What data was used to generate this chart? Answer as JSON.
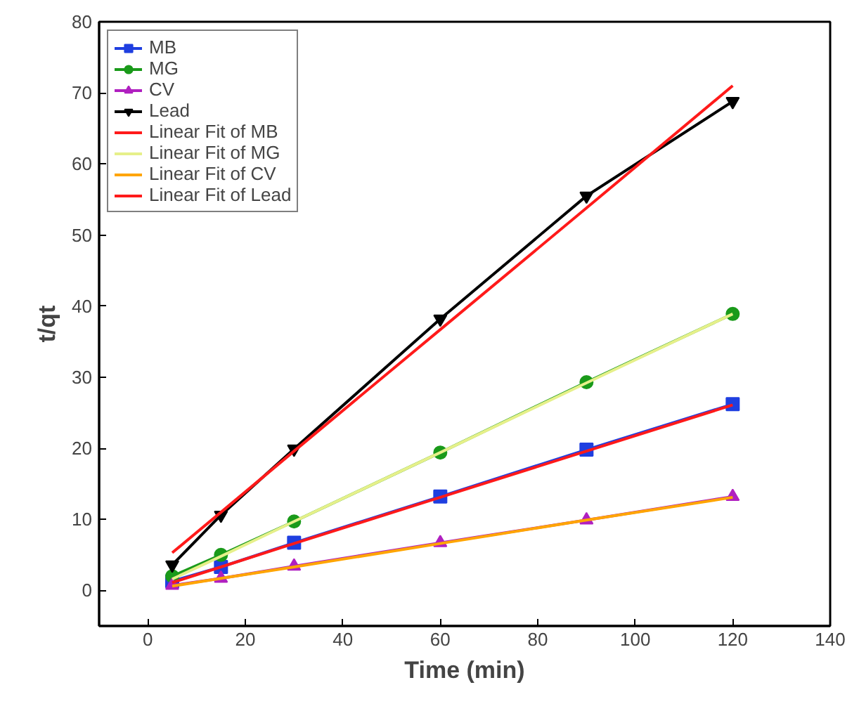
{
  "chart_data": {
    "type": "line",
    "xlabel": "Time (min)",
    "ylabel": "t/qt",
    "xlim": [
      -10,
      140
    ],
    "ylim": [
      -5,
      80
    ],
    "xticks": [
      0,
      20,
      40,
      60,
      80,
      100,
      120,
      140
    ],
    "yticks": [
      0,
      10,
      20,
      30,
      40,
      50,
      60,
      70,
      80
    ],
    "grid": false,
    "legend": "top left",
    "line_style": "solid",
    "x": [
      5,
      15,
      30,
      60,
      90,
      120
    ],
    "series": [
      {
        "name": "MB",
        "color": "#1f3fe0",
        "marker": "square",
        "values": [
          1.3,
          3.3,
          6.7,
          13.2,
          19.8,
          26.2
        ]
      },
      {
        "name": "MG",
        "color": "#1a9a1a",
        "marker": "circle",
        "values": [
          2.0,
          5.0,
          9.7,
          19.4,
          29.3,
          38.9
        ]
      },
      {
        "name": "CV",
        "color": "#b020c0",
        "marker": "triangle",
        "values": [
          0.7,
          1.7,
          3.4,
          6.7,
          9.9,
          13.2
        ]
      },
      {
        "name": "Lead",
        "color": "#000000",
        "marker": "triangle_down",
        "values": [
          3.6,
          10.6,
          19.9,
          38.2,
          55.5,
          68.8
        ]
      },
      {
        "name": "Linear Fit of MB",
        "color": "#ff1a1a",
        "marker": "none",
        "values": [
          1.1,
          3.3,
          6.6,
          13.1,
          19.6,
          26.1
        ]
      },
      {
        "name": "Linear Fit of MG",
        "color": "#e6f08a",
        "marker": "none",
        "values": [
          1.6,
          4.8,
          9.7,
          19.4,
          29.2,
          38.9
        ]
      },
      {
        "name": "Linear Fit of CV",
        "color": "#ffa500",
        "marker": "none",
        "values": [
          0.6,
          1.7,
          3.3,
          6.6,
          9.9,
          13.1
        ]
      },
      {
        "name": "Linear Fit of Lead",
        "color": "#ff1a1a",
        "marker": "none",
        "values": [
          5.3,
          11.0,
          19.6,
          36.7,
          53.8,
          71.0
        ]
      }
    ]
  }
}
